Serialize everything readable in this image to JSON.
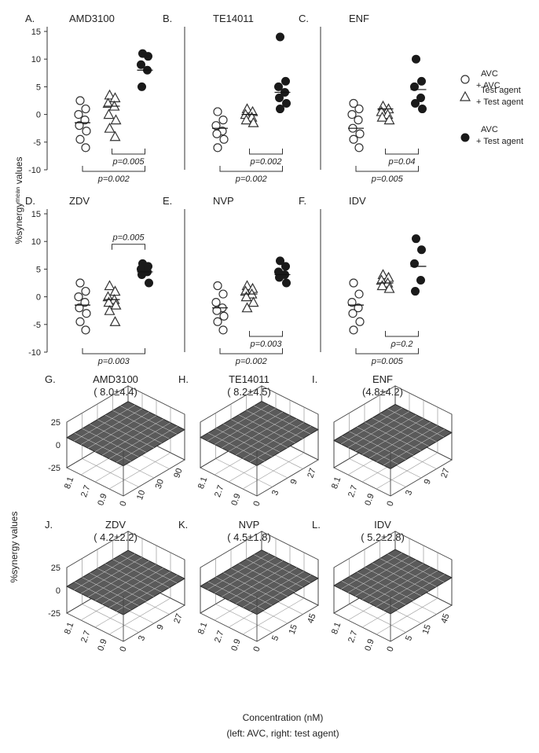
{
  "axis_labels": {
    "scatter_ylabel": "%synergyᵐᵉᵃⁿ values",
    "surface_zlabel": "%synergy values",
    "xlabel_line1": "Concentration (nM)",
    "xlabel_line2": "(left: AVC, right: test agent)"
  },
  "legend": {
    "items": [
      {
        "marker": "open-circle",
        "line1": "AVC",
        "line2": "+ AVC"
      },
      {
        "marker": "open-triangle",
        "line1": "Test agent",
        "line2": "+ Test agent"
      },
      {
        "marker": "filled-circle",
        "line1": "AVC",
        "line2": "+ Test agent"
      }
    ]
  },
  "chart_data": [
    {
      "type": "scatter",
      "id": "A",
      "letter": "A.",
      "title": "AMD3100",
      "ylim": [
        -10,
        15
      ],
      "yticks": [
        "15",
        "10",
        "5",
        "0",
        "-5",
        "-10"
      ],
      "groups": [
        {
          "values": [
            2.5,
            1,
            0,
            -1,
            -2,
            -3,
            -4.5,
            -6
          ],
          "mean": -1.5,
          "marker": "open-circle"
        },
        {
          "values": [
            3.5,
            3,
            2,
            1.5,
            0,
            -1,
            -2.5,
            -4
          ],
          "mean": 1.5,
          "marker": "open-triangle"
        },
        {
          "values": [
            11,
            10.5,
            9,
            8,
            5
          ],
          "mean": 8.0,
          "marker": "filled-circle"
        }
      ],
      "comparisons": [
        {
          "label": "p=0.005",
          "from": 1,
          "to": 2,
          "side": "below",
          "level": 1
        },
        {
          "label": "p=0.002",
          "from": 0,
          "to": 2,
          "side": "below",
          "level": 2
        }
      ]
    },
    {
      "type": "scatter",
      "id": "B",
      "letter": "B.",
      "title": "TE14011",
      "groups": [
        {
          "values": [
            0.5,
            -1,
            -2,
            -3,
            -3.5,
            -4.5,
            -6
          ],
          "mean": -2.5,
          "marker": "open-circle"
        },
        {
          "values": [
            1,
            0.5,
            0,
            -0.5,
            -1,
            -1.5
          ],
          "mean": 0,
          "marker": "open-triangle"
        },
        {
          "values": [
            14,
            6,
            5,
            4,
            3,
            2,
            1
          ],
          "mean": 4.0,
          "marker": "filled-circle"
        }
      ],
      "comparisons": [
        {
          "label": "p=0.002",
          "from": 1,
          "to": 2,
          "side": "below",
          "level": 1
        },
        {
          "label": "p=0.002",
          "from": 0,
          "to": 2,
          "side": "below",
          "level": 2
        }
      ]
    },
    {
      "type": "scatter",
      "id": "C",
      "letter": "C.",
      "title": "ENF",
      "groups": [
        {
          "values": [
            2,
            1,
            0,
            -1,
            -2.5,
            -3.5,
            -4.5,
            -6
          ],
          "mean": -2.5,
          "marker": "open-circle"
        },
        {
          "values": [
            1.5,
            1,
            0.5,
            0,
            -0.5,
            -1
          ],
          "mean": 1.0,
          "marker": "open-triangle"
        },
        {
          "values": [
            10,
            6,
            5,
            3,
            2,
            1
          ],
          "mean": 4.5,
          "marker": "filled-circle"
        }
      ],
      "comparisons": [
        {
          "label": "p=0.04",
          "from": 1,
          "to": 2,
          "side": "below",
          "level": 1
        },
        {
          "label": "p=0.005",
          "from": 0,
          "to": 2,
          "side": "below",
          "level": 2
        }
      ]
    },
    {
      "type": "scatter",
      "id": "D",
      "letter": "D.",
      "title": "ZDV",
      "ylim": [
        -10,
        15
      ],
      "yticks": [
        "15",
        "10",
        "5",
        "0",
        "-5",
        "-10"
      ],
      "groups": [
        {
          "values": [
            2.5,
            1,
            0,
            -1,
            -2,
            -3,
            -4.5,
            -6
          ],
          "mean": -1.5,
          "marker": "open-circle"
        },
        {
          "values": [
            2,
            1,
            0,
            -0.5,
            -1,
            -1.5,
            -2.5,
            -4.5
          ],
          "mean": -0.5,
          "marker": "open-triangle"
        },
        {
          "values": [
            6,
            5.5,
            5,
            4.5,
            4,
            2.5
          ],
          "mean": 4.5,
          "marker": "filled-circle"
        }
      ],
      "comparisons": [
        {
          "label": "p=0.005",
          "from": 1,
          "to": 2,
          "side": "above",
          "level": 1
        },
        {
          "label": "p=0.003",
          "from": 0,
          "to": 2,
          "side": "below",
          "level": 2
        }
      ]
    },
    {
      "type": "scatter",
      "id": "E",
      "letter": "E.",
      "title": "NVP",
      "groups": [
        {
          "values": [
            2,
            0.5,
            -1,
            -2,
            -2.5,
            -3.5,
            -4.5,
            -6
          ],
          "mean": -2.0,
          "marker": "open-circle"
        },
        {
          "values": [
            2,
            1.5,
            1,
            0.5,
            0,
            -1,
            -2
          ],
          "mean": 0.5,
          "marker": "open-triangle"
        },
        {
          "values": [
            6.5,
            5.5,
            4.5,
            4,
            3.5,
            2.5
          ],
          "mean": 4.0,
          "marker": "filled-circle"
        }
      ],
      "comparisons": [
        {
          "label": "p=0.003",
          "from": 1,
          "to": 2,
          "side": "below",
          "level": 1
        },
        {
          "label": "p=0.002",
          "from": 0,
          "to": 2,
          "side": "below",
          "level": 2
        }
      ]
    },
    {
      "type": "scatter",
      "id": "F",
      "letter": "F.",
      "title": "IDV",
      "groups": [
        {
          "values": [
            2.5,
            0.5,
            -1,
            -2,
            -3,
            -4.5,
            -6
          ],
          "mean": -1.5,
          "marker": "open-circle"
        },
        {
          "values": [
            4,
            3.5,
            3,
            2.5,
            2,
            1.5
          ],
          "mean": 2.5,
          "marker": "open-triangle"
        },
        {
          "values": [
            10.5,
            8.5,
            6,
            3,
            1
          ],
          "mean": 5.5,
          "marker": "filled-circle"
        }
      ],
      "comparisons": [
        {
          "label": "ρ=0.2",
          "from": 1,
          "to": 2,
          "side": "below",
          "level": 1
        },
        {
          "label": "p=0.005",
          "from": 0,
          "to": 2,
          "side": "below",
          "level": 2
        }
      ]
    },
    {
      "type": "surface",
      "id": "G",
      "letter": "G.",
      "title": "AMD3100",
      "subtitle": "( 8.0±4.4)",
      "zlim": [
        -25,
        25
      ],
      "zticks": [
        "25",
        "0",
        "-25"
      ],
      "x_ticks": [
        "8.1",
        "2.7",
        "0.9"
      ],
      "y_ticks": [
        "0",
        "10",
        "30",
        "90"
      ],
      "mean": 8.0,
      "sd": 4.4
    },
    {
      "type": "surface",
      "id": "H",
      "letter": "H.",
      "title": "TE14011",
      "subtitle": "( 8.2±4.5)",
      "x_ticks": [
        "8.1",
        "2.7",
        "0.9"
      ],
      "y_ticks": [
        "0",
        "3",
        "9",
        "27"
      ],
      "mean": 8.2,
      "sd": 4.5
    },
    {
      "type": "surface",
      "id": "I",
      "letter": "I.",
      "title": "ENF",
      "subtitle": "(4.8±4.2)",
      "x_ticks": [
        "8.1",
        "2.7",
        "0.9"
      ],
      "y_ticks": [
        "0",
        "3",
        "9",
        "27"
      ],
      "mean": 4.8,
      "sd": 4.2
    },
    {
      "type": "surface",
      "id": "J",
      "letter": "J.",
      "title": "ZDV",
      "subtitle": "( 4.2±2.2)",
      "zlim": [
        -25,
        25
      ],
      "zticks": [
        "25",
        "0",
        "-25"
      ],
      "x_ticks": [
        "8.1",
        "2.7",
        "0.9"
      ],
      "y_ticks": [
        "0",
        "3",
        "9",
        "27"
      ],
      "mean": 4.2,
      "sd": 2.2
    },
    {
      "type": "surface",
      "id": "K",
      "letter": "K.",
      "title": "NVP",
      "subtitle": "( 4.5±1.8)",
      "x_ticks": [
        "8.1",
        "2.7",
        "0.9"
      ],
      "y_ticks": [
        "0",
        "5",
        "15",
        "45"
      ],
      "mean": 4.5,
      "sd": 1.8
    },
    {
      "type": "surface",
      "id": "L",
      "letter": "L.",
      "title": "IDV",
      "subtitle": "( 5.2±2.8)",
      "x_ticks": [
        "8.1",
        "2.7",
        "0.9"
      ],
      "y_ticks": [
        "0",
        "5",
        "15",
        "45"
      ],
      "mean": 5.2,
      "sd": 2.8
    }
  ]
}
